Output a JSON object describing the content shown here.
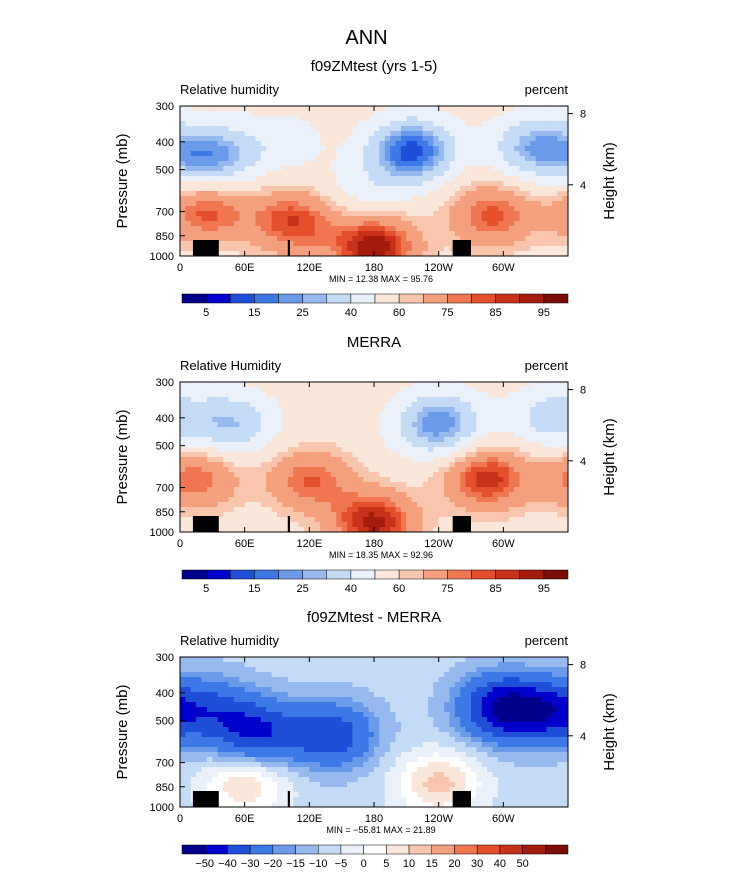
{
  "title": "ANN",
  "colors": {
    "seq": [
      "#00008b",
      "#0000cd",
      "#1f4fd8",
      "#3c78e6",
      "#6a9ae9",
      "#97baee",
      "#c4dbf5",
      "#eaf1fb",
      "#fbe7da",
      "#f8c6ac",
      "#f4a07f",
      "#ef7650",
      "#e4502c",
      "#c8321a",
      "#a31c0e",
      "#7a0e06"
    ],
    "div": [
      "#00008b",
      "#0000cd",
      "#1f4fd8",
      "#3c78e6",
      "#6a9ae9",
      "#97baee",
      "#c4dbf5",
      "#eaf1fb",
      "#ffffff",
      "#fbe7da",
      "#f8c6ac",
      "#f4a07f",
      "#ef7650",
      "#e4502c",
      "#c8321a",
      "#a31c0e",
      "#7a0e06"
    ]
  },
  "panels": [
    {
      "title": "f09ZMtest (yrs 1-5)",
      "left_label": "Relative humidity",
      "right_label": "percent",
      "ylabel": "Pressure (mb)",
      "y2label": "Height (km)",
      "stats": "MIN =   12.38   MAX =   95.76",
      "colorbar_labels": [
        "5",
        "15",
        "25",
        "40",
        "60",
        "75",
        "85",
        "95"
      ],
      "scale": "seq"
    },
    {
      "title": "MERRA",
      "left_label": "Relative Humidity",
      "right_label": "percent",
      "ylabel": "Pressure (mb)",
      "y2label": "Height (km)",
      "stats": "MIN =   18.35   MAX =   92.96",
      "colorbar_labels": [
        "5",
        "15",
        "25",
        "40",
        "60",
        "75",
        "85",
        "95"
      ],
      "scale": "seq"
    },
    {
      "title": "f09ZMtest - MERRA",
      "left_label": "Relative humidity",
      "right_label": "percent",
      "ylabel": "Pressure (mb)",
      "y2label": "Height (km)",
      "stats": "MIN = −55.81   MAX =   21.89",
      "colorbar_labels": [
        "−50",
        "−40",
        "−30",
        "−20",
        "−15",
        "−10",
        "−5",
        "0",
        "5",
        "10",
        "15",
        "20",
        "30",
        "40",
        "50"
      ],
      "scale": "div"
    }
  ],
  "chart_data": [
    {
      "type": "heatmap",
      "title": "f09ZMtest (yrs 1-5)",
      "units": "percent",
      "ylabel": "Pressure (mb)",
      "y2label": "Height (km)",
      "x_ticks": [
        "0",
        "60E",
        "120E",
        "180",
        "120W",
        "60W"
      ],
      "x_tick_values": [
        0,
        60,
        120,
        180,
        240,
        300
      ],
      "xlim": [
        0,
        360
      ],
      "y_ticks": [
        300,
        400,
        500,
        700,
        850,
        1000
      ],
      "ylim": [
        1000,
        300
      ],
      "y2_ticks": [
        8,
        4
      ],
      "min": 12.38,
      "max": 95.76,
      "levels": [
        5,
        10,
        15,
        20,
        25,
        30,
        40,
        50,
        60,
        65,
        75,
        80,
        85,
        90,
        95
      ],
      "features": [
        {
          "lon": 30,
          "p": 450,
          "value": 22
        },
        {
          "lon": 95,
          "p": 400,
          "value": 45
        },
        {
          "lon": 215,
          "p": 430,
          "value": 12
        },
        {
          "lon": 330,
          "p": 420,
          "value": 25
        },
        {
          "lon": 170,
          "p": 600,
          "value": 45
        },
        {
          "lon": 25,
          "p": 700,
          "value": 82
        },
        {
          "lon": 105,
          "p": 760,
          "value": 85
        },
        {
          "lon": 290,
          "p": 720,
          "value": 82
        },
        {
          "lon": 180,
          "p": 930,
          "value": 95
        }
      ]
    },
    {
      "type": "heatmap",
      "title": "MERRA",
      "units": "percent",
      "ylabel": "Pressure (mb)",
      "y2label": "Height (km)",
      "x_ticks": [
        "0",
        "60E",
        "120E",
        "180",
        "120W",
        "60W"
      ],
      "x_tick_values": [
        0,
        60,
        120,
        180,
        240,
        300
      ],
      "xlim": [
        0,
        360
      ],
      "y_ticks": [
        300,
        400,
        500,
        700,
        850,
        1000
      ],
      "ylim": [
        1000,
        300
      ],
      "y2_ticks": [
        8,
        4
      ],
      "min": 18.35,
      "max": 92.96,
      "levels": [
        5,
        10,
        15,
        20,
        25,
        30,
        40,
        50,
        60,
        65,
        75,
        80,
        85,
        90,
        95
      ],
      "features": [
        {
          "lon": 48,
          "p": 420,
          "value": 30
        },
        {
          "lon": 240,
          "p": 420,
          "value": 20
        },
        {
          "lon": 345,
          "p": 400,
          "value": 35
        },
        {
          "lon": 120,
          "p": 660,
          "value": 80
        },
        {
          "lon": 15,
          "p": 650,
          "value": 80
        },
        {
          "lon": 285,
          "p": 650,
          "value": 88
        },
        {
          "lon": 180,
          "p": 930,
          "value": 92
        }
      ]
    },
    {
      "type": "heatmap",
      "title": "f09ZMtest - MERRA",
      "units": "percent",
      "ylabel": "Pressure (mb)",
      "y2label": "Height (km)",
      "x_ticks": [
        "0",
        "60E",
        "120E",
        "180",
        "120W",
        "60W"
      ],
      "x_tick_values": [
        0,
        60,
        120,
        180,
        240,
        300
      ],
      "xlim": [
        0,
        360
      ],
      "y_ticks": [
        300,
        400,
        500,
        700,
        850,
        1000
      ],
      "ylim": [
        1000,
        300
      ],
      "y2_ticks": [
        8,
        4
      ],
      "min": -55.81,
      "max": 21.89,
      "levels": [
        -50,
        -40,
        -30,
        -20,
        -15,
        -10,
        -5,
        0,
        5,
        10,
        15,
        20,
        30,
        40,
        50
      ],
      "features": [
        {
          "lon": 300,
          "p": 450,
          "value": -50
        },
        {
          "lon": 70,
          "p": 550,
          "value": -40
        },
        {
          "lon": 140,
          "p": 560,
          "value": -38
        },
        {
          "lon": 30,
          "p": 450,
          "value": -25
        },
        {
          "lon": 345,
          "p": 470,
          "value": -35
        },
        {
          "lon": 60,
          "p": 830,
          "value": 10
        },
        {
          "lon": 240,
          "p": 830,
          "value": 12
        }
      ]
    }
  ]
}
